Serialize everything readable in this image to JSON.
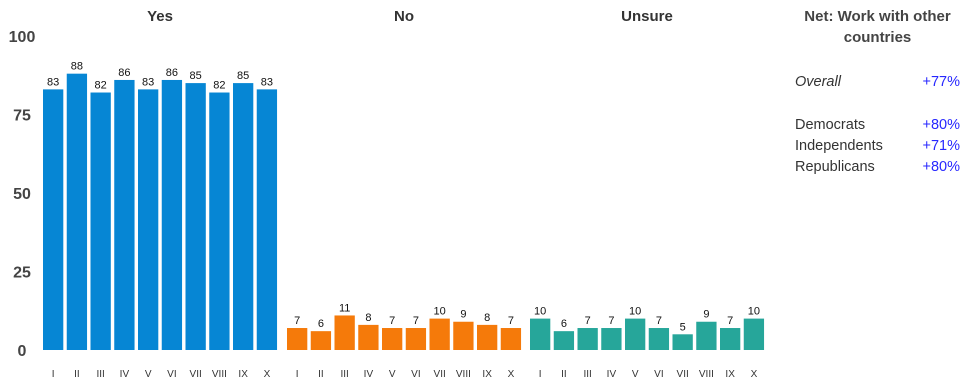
{
  "chart_data": {
    "type": "bar",
    "categories": [
      "I",
      "II",
      "III",
      "IV",
      "V",
      "VI",
      "VII",
      "VIII",
      "IX",
      "X"
    ],
    "series": [
      {
        "name": "Yes",
        "color": "#0686d4",
        "values": [
          83,
          88,
          82,
          86,
          83,
          86,
          85,
          82,
          85,
          83
        ]
      },
      {
        "name": "No",
        "color": "#f57a0a",
        "values": [
          7,
          6,
          11,
          8,
          7,
          7,
          10,
          9,
          8,
          7
        ]
      },
      {
        "name": "Unsure",
        "color": "#26a69a",
        "values": [
          10,
          6,
          7,
          7,
          10,
          7,
          5,
          9,
          7,
          10
        ]
      }
    ],
    "ylim": [
      0,
      100
    ],
    "yticks": [
      "0",
      "25",
      "50",
      "75",
      "100"
    ],
    "grid": false
  },
  "sidebar": {
    "title": "Net: Work with other countries",
    "rows": [
      {
        "label": "Overall",
        "value": "+77%"
      },
      {
        "label": "Democrats",
        "value": "+80%"
      },
      {
        "label": "Independents",
        "value": "+71%"
      },
      {
        "label": "Republicans",
        "value": "+80%"
      }
    ]
  }
}
